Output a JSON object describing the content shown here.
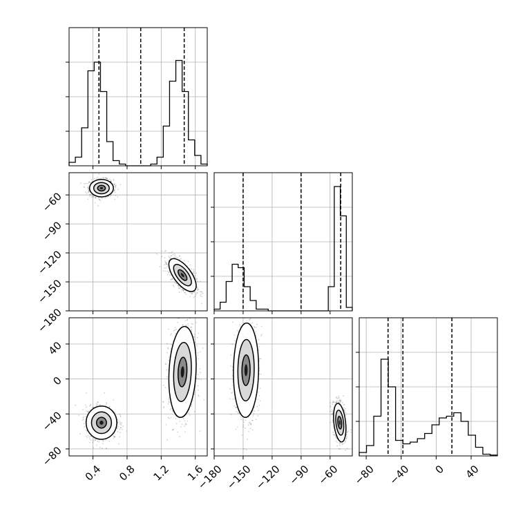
{
  "chart_data": {
    "type": "corner",
    "params": [
      {
        "ticks": [
          0.4,
          0.8,
          1.2,
          1.6
        ],
        "tick_labels": [
          "0.4",
          "0.8",
          "1.2",
          "1.6"
        ],
        "range": [
          0.12,
          1.74
        ],
        "quantiles": [
          0.47,
          0.96,
          1.47
        ]
      },
      {
        "ticks": [
          -180,
          -150,
          -120,
          -90,
          -60
        ],
        "tick_labels": [
          "−180",
          "−150",
          "−120",
          "−90",
          "−60"
        ],
        "range": [
          -180,
          -37
        ],
        "quantiles": [
          -150,
          -90,
          -49
        ]
      },
      {
        "ticks": [
          -80,
          -40,
          0,
          40
        ],
        "tick_labels": [
          "−80",
          "−40",
          "0",
          "40"
        ],
        "range": [
          -88,
          70
        ],
        "quantiles": [
          -55,
          -38,
          18
        ]
      }
    ],
    "histograms": [
      [
        0.02,
        0.05,
        0.22,
        0.55,
        0.6,
        0.43,
        0.14,
        0.03,
        0.01,
        0,
        0,
        0,
        0,
        0.01,
        0.05,
        0.23,
        0.49,
        0.61,
        0.43,
        0.15,
        0.06,
        0.01
      ],
      [
        0.01,
        0.05,
        0.17,
        0.27,
        0.25,
        0.14,
        0.06,
        0.01,
        0.01,
        0,
        0,
        0,
        0,
        0,
        0,
        0,
        0,
        0,
        0,
        0.14,
        0.72,
        0.55,
        0.02
      ],
      [
        0.02,
        0.06,
        0.23,
        0.56,
        0.4,
        0.09,
        0.07,
        0.08,
        0.1,
        0.13,
        0.18,
        0.22,
        0.23,
        0.25,
        0.2,
        0.12,
        0.05,
        0.01,
        0.005
      ]
    ],
    "histogram_max": 0.8,
    "pairs": [
      {
        "row": 1,
        "col": 0,
        "clusters": [
          {
            "cx": 0.5,
            "cy": -53,
            "sx": 0.07,
            "sy": 4.5,
            "rho": 0
          },
          {
            "cx": 1.45,
            "cy": -143,
            "sx": 0.08,
            "sy": 8.5,
            "rho": -0.65
          }
        ]
      },
      {
        "row": 2,
        "col": 0,
        "clusters": [
          {
            "cx": 0.5,
            "cy": -50,
            "sx": 0.09,
            "sy": 9.5,
            "rho": 0
          },
          {
            "cx": 1.45,
            "cy": 8,
            "sx": 0.08,
            "sy": 26,
            "rho": 0.15
          }
        ]
      },
      {
        "row": 2,
        "col": 1,
        "clusters": [
          {
            "cx": -147,
            "cy": 10,
            "sx": 6.5,
            "sy": 27,
            "rho": 0.05
          },
          {
            "cx": -50,
            "cy": -50,
            "sx": 3.2,
            "sy": 11,
            "rho": -0.3
          }
        ]
      }
    ],
    "colors": {
      "hist": "#000000",
      "contour": "#000000",
      "grid": "#b0b0b0",
      "points": "#000000"
    }
  }
}
